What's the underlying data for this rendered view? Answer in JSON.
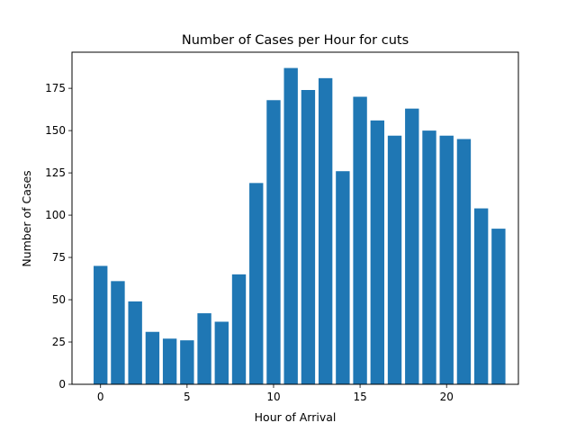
{
  "chart_data": {
    "type": "bar",
    "title": "Number of Cases per Hour for cuts",
    "xlabel": "Hour of Arrival",
    "ylabel": "Number of Cases",
    "x": [
      0,
      1,
      2,
      3,
      4,
      5,
      6,
      7,
      8,
      9,
      10,
      11,
      12,
      13,
      14,
      15,
      16,
      17,
      18,
      19,
      20,
      21,
      22,
      23
    ],
    "values": [
      70,
      61,
      49,
      31,
      27,
      26,
      42,
      37,
      65,
      119,
      168,
      187,
      174,
      181,
      126,
      170,
      156,
      147,
      163,
      150,
      147,
      145,
      104,
      92
    ],
    "xlim": [
      -1.65,
      24.15
    ],
    "ylim": [
      0,
      196.35
    ],
    "xticks": [
      0,
      5,
      10,
      15,
      20
    ],
    "yticks": [
      0,
      25,
      50,
      75,
      100,
      125,
      150,
      175
    ],
    "bar_color": "#1f77b4",
    "grid": false,
    "legend": "none"
  }
}
